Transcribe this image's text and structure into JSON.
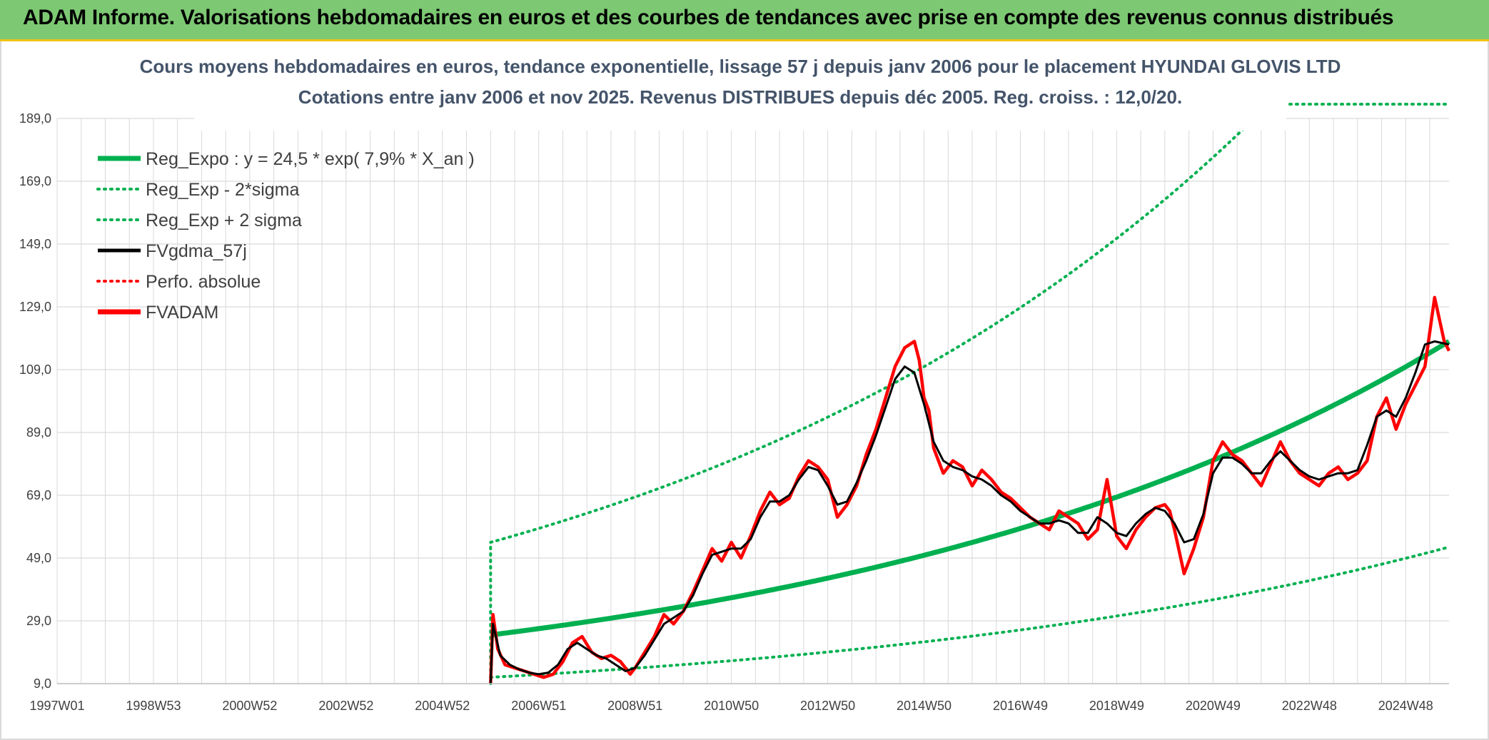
{
  "page": {
    "banner_title": "ADAM Informe. Valorisations hebdomadaires en euros et des courbes de tendances avec prise en compte des revenus connus distribués"
  },
  "colors": {
    "banner": "#7dc873",
    "reg_green": "#00b050",
    "black": "#000000",
    "red": "#ff0000",
    "grid": "#d9d9d9"
  },
  "chart_data": {
    "type": "line",
    "title_lines": [
      "Cours moyens hebdomadaires en euros, tendance exponentielle, lissage 57 j depuis janv 2006 pour le placement HYUNDAI GLOVIS LTD",
      "Cotations entre janv 2006 et nov 2025. Revenus DISTRIBUES depuis déc 2005. Reg. croiss. : 12,0/20."
    ],
    "x_range": [
      1997.0,
      2025.9
    ],
    "y_range": [
      9,
      189
    ],
    "y_ticks": [
      "9,0",
      "29,0",
      "49,0",
      "69,0",
      "89,0",
      "109,0",
      "129,0",
      "149,0",
      "169,0",
      "189,0"
    ],
    "x_tick_labels": [
      "1997W01",
      "1998W53",
      "2000W52",
      "2002W52",
      "2004W52",
      "2006W51",
      "2008W51",
      "2010W50",
      "2012W50",
      "2014W50",
      "2016W49",
      "2018W49",
      "2020W49",
      "2022W48",
      "2024W48"
    ],
    "x_tick_years": [
      1997.0,
      1999.0,
      2001.0,
      2003.0,
      2005.0,
      2007.0,
      2009.0,
      2011.0,
      2013.0,
      2015.0,
      2017.0,
      2019.0,
      2021.0,
      2023.0,
      2025.0
    ],
    "legend": [
      {
        "name": "Reg_Expo : y = 24,5 * exp( 7,9% *  X_an )",
        "color": "#00b050",
        "style": "solid-thick"
      },
      {
        "name": "Reg_Exp - 2*sigma",
        "color": "#00b050",
        "style": "dotted"
      },
      {
        "name": "Reg_Exp + 2 sigma",
        "color": "#00b050",
        "style": "dotted"
      },
      {
        "name": "FVgdma_57j",
        "color": "#000000",
        "style": "solid"
      },
      {
        "name": "Perfo. absolue",
        "color": "#ff0000",
        "style": "dotted"
      },
      {
        "name": "FVADAM",
        "color": "#ff0000",
        "style": "solid-thick"
      }
    ],
    "regression": {
      "a": 24.5,
      "rate": 0.079,
      "start_year": 2006.0,
      "end_year": 2025.9
    },
    "lower_band": {
      "start_value": 11.0,
      "end_value": 52.5
    },
    "upper_band": {
      "start_value": 54.0,
      "drop_to": 9
    },
    "series": [
      {
        "name": "FVADAM",
        "x": [
          2006.0,
          2006.05,
          2006.15,
          2006.3,
          2006.5,
          2006.7,
          2006.9,
          2007.1,
          2007.3,
          2007.5,
          2007.7,
          2007.9,
          2008.1,
          2008.3,
          2008.5,
          2008.7,
          2008.9,
          2009.0,
          2009.2,
          2009.4,
          2009.6,
          2009.8,
          2010.0,
          2010.2,
          2010.4,
          2010.6,
          2010.8,
          2011.0,
          2011.2,
          2011.4,
          2011.6,
          2011.8,
          2012.0,
          2012.2,
          2012.4,
          2012.6,
          2012.8,
          2013.0,
          2013.2,
          2013.4,
          2013.6,
          2013.8,
          2014.0,
          2014.2,
          2014.4,
          2014.6,
          2014.8,
          2014.9,
          2015.0,
          2015.1,
          2015.2,
          2015.4,
          2015.6,
          2015.8,
          2016.0,
          2016.2,
          2016.4,
          2016.6,
          2016.8,
          2017.0,
          2017.2,
          2017.4,
          2017.6,
          2017.8,
          2018.0,
          2018.2,
          2018.4,
          2018.6,
          2018.8,
          2019.0,
          2019.2,
          2019.4,
          2019.6,
          2019.8,
          2020.0,
          2020.1,
          2020.2,
          2020.4,
          2020.6,
          2020.8,
          2021.0,
          2021.2,
          2021.4,
          2021.6,
          2021.8,
          2022.0,
          2022.2,
          2022.4,
          2022.6,
          2022.8,
          2023.0,
          2023.2,
          2023.4,
          2023.6,
          2023.8,
          2024.0,
          2024.2,
          2024.4,
          2024.6,
          2024.8,
          2025.0,
          2025.2,
          2025.4,
          2025.6,
          2025.8,
          2025.9
        ],
        "values": [
          9,
          31,
          20,
          15,
          14,
          13,
          12,
          11,
          12,
          16,
          22,
          24,
          19,
          17,
          18,
          16,
          12,
          14,
          19,
          24,
          31,
          28,
          32,
          38,
          45,
          52,
          48,
          54,
          49,
          56,
          64,
          70,
          66,
          68,
          75,
          80,
          78,
          74,
          62,
          66,
          72,
          82,
          90,
          100,
          110,
          116,
          118,
          112,
          100,
          96,
          84,
          76,
          80,
          78,
          72,
          77,
          74,
          70,
          68,
          65,
          62,
          60,
          58,
          64,
          62,
          60,
          55,
          58,
          74,
          56,
          52,
          58,
          62,
          65,
          66,
          64,
          58,
          44,
          52,
          62,
          80,
          86,
          82,
          80,
          76,
          72,
          79,
          86,
          80,
          76,
          74,
          72,
          76,
          78,
          74,
          76,
          80,
          94,
          100,
          90,
          98,
          104,
          110,
          132,
          118,
          115
        ]
      },
      {
        "name": "FVgdma_57j",
        "x": [
          2006.0,
          2006.05,
          2006.2,
          2006.4,
          2006.6,
          2006.8,
          2007.0,
          2007.2,
          2007.4,
          2007.6,
          2007.8,
          2008.0,
          2008.2,
          2008.4,
          2008.6,
          2008.8,
          2009.0,
          2009.2,
          2009.4,
          2009.6,
          2009.8,
          2010.0,
          2010.2,
          2010.4,
          2010.6,
          2010.8,
          2011.0,
          2011.2,
          2011.4,
          2011.6,
          2011.8,
          2012.0,
          2012.2,
          2012.4,
          2012.6,
          2012.8,
          2013.0,
          2013.2,
          2013.4,
          2013.6,
          2013.8,
          2014.0,
          2014.2,
          2014.4,
          2014.6,
          2014.8,
          2015.0,
          2015.2,
          2015.4,
          2015.6,
          2015.8,
          2016.0,
          2016.2,
          2016.4,
          2016.6,
          2016.8,
          2017.0,
          2017.2,
          2017.4,
          2017.6,
          2017.8,
          2018.0,
          2018.2,
          2018.4,
          2018.6,
          2018.8,
          2019.0,
          2019.2,
          2019.4,
          2019.6,
          2019.8,
          2020.0,
          2020.2,
          2020.4,
          2020.6,
          2020.8,
          2021.0,
          2021.2,
          2021.4,
          2021.6,
          2021.8,
          2022.0,
          2022.2,
          2022.4,
          2022.6,
          2022.8,
          2023.0,
          2023.2,
          2023.4,
          2023.6,
          2023.8,
          2024.0,
          2024.2,
          2024.4,
          2024.6,
          2024.8,
          2025.0,
          2025.2,
          2025.4,
          2025.6,
          2025.9
        ],
        "values": [
          9,
          28,
          18,
          15,
          13.5,
          12.5,
          12,
          12.5,
          15,
          20,
          22,
          20,
          18,
          17,
          15,
          13,
          14,
          18,
          23,
          28,
          30,
          32,
          37,
          44,
          50,
          51,
          52,
          52,
          55,
          62,
          67,
          67,
          69,
          74,
          78,
          77,
          72,
          66,
          67,
          73,
          80,
          88,
          97,
          106,
          110,
          108,
          98,
          86,
          80,
          78,
          77,
          75,
          74,
          72,
          69,
          67,
          64,
          62,
          60,
          60,
          61,
          60,
          57,
          57,
          62,
          60,
          57,
          56,
          60,
          63,
          65,
          64,
          60,
          54,
          55,
          63,
          76,
          81,
          81,
          79,
          76,
          76,
          80,
          83,
          80,
          77,
          75,
          74,
          75,
          76,
          76,
          77,
          85,
          94,
          96,
          94,
          100,
          108,
          117,
          118,
          117
        ]
      }
    ]
  }
}
